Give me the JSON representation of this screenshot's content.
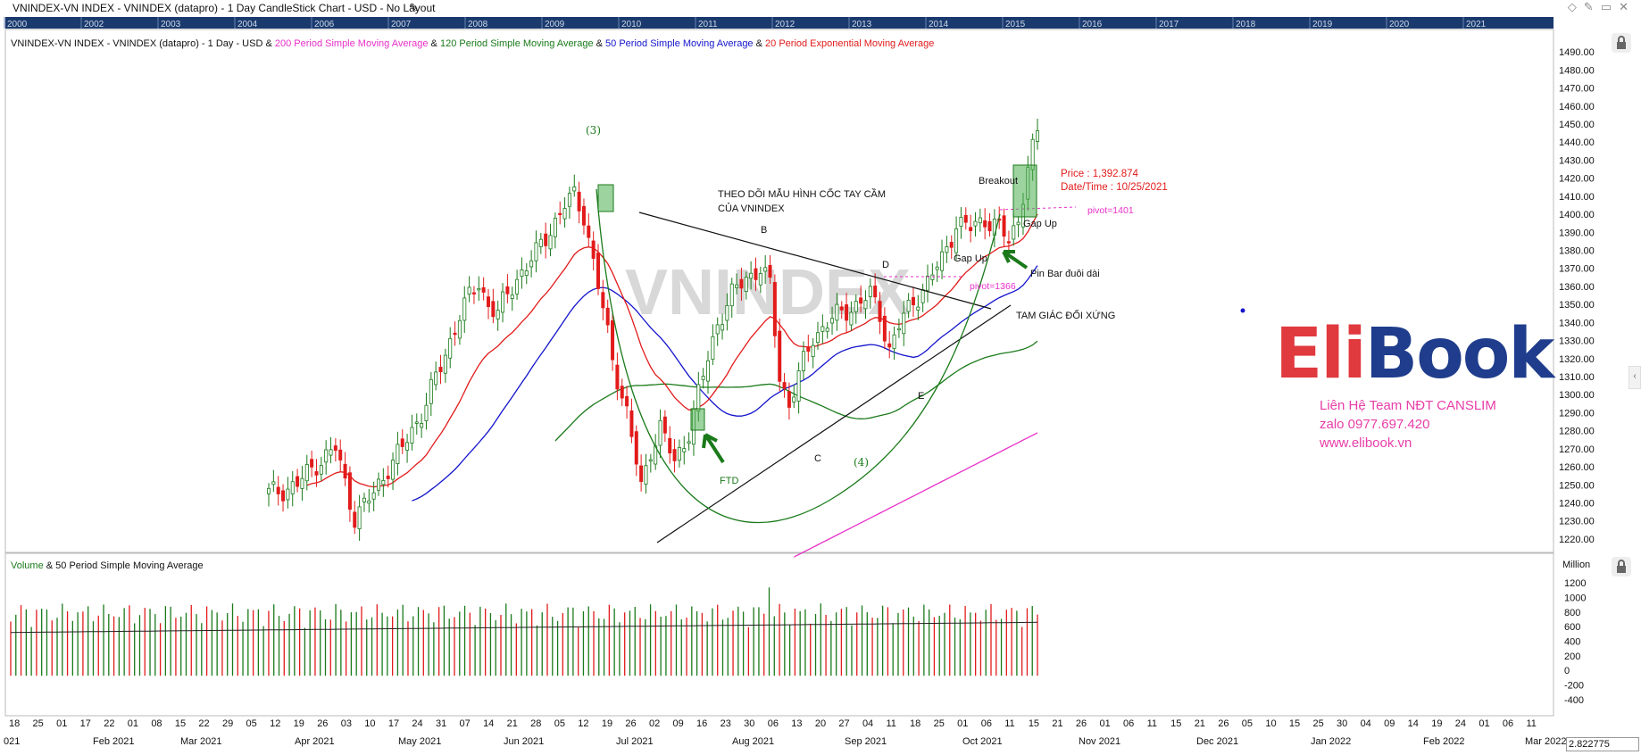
{
  "window_title": "VNINDEX-VN INDEX - VNINDEX (datapro) - 1 Day CandleStick Chart - USD - No Layout",
  "overview_years": [
    "2000",
    "2002",
    "2003",
    "2004",
    "2006",
    "2007",
    "2008",
    "2009",
    "2010",
    "2011",
    "2012",
    "2013",
    "2014",
    "2015",
    "2016",
    "2017",
    "2018",
    "2019",
    "2020",
    "2021"
  ],
  "legend": {
    "main": "VNINDEX-VN INDEX - VNINDEX (datapro) - 1 Day - USD",
    "amp": "&",
    "sma200": "200 Period Simple Moving Average",
    "sma120": "120 Period Simple Moving Average",
    "sma50": "50 Period Simple Moving Average",
    "ema20": "20 Period Exponential Moving Average",
    "volume": "Volume",
    "volume_rest": "& 50 Period Simple Moving Average"
  },
  "colors": {
    "up": "#1a7a1a",
    "down": "#e21b1b",
    "sma200": "#e830c8",
    "sma120": "#1a7a1a",
    "sma50": "#1414cc",
    "ema20": "#e21b1b",
    "overview": "#1a3a6e"
  },
  "annotations": {
    "wave3": "(3)",
    "wave4": "(4)",
    "title1": "THEO DÕI MẪU HÌNH CỐC TAY CẦM",
    "title2": "CỦA VNINDEX",
    "B": "B",
    "C": "C",
    "D": "D",
    "E": "E",
    "ftd": "FTD",
    "gapup1": "Gap Up",
    "gapup2": "Gap Up",
    "breakout": "Breakout",
    "pinbar": "Pin Bar đuôi dài",
    "triangle": "TAM GIÁC ĐỐI XỨNG",
    "pivot1366": "pivot=1366",
    "pivot1401": "pivot=1401",
    "price": "Price : 1,392.874",
    "datetime": "Date/Time : 10/25/2021",
    "watermark": "VNINDEX"
  },
  "logo": {
    "eli": "Eli",
    "book": "Book"
  },
  "contact": [
    "Liên Hệ Team NĐT CANSLIM",
    "zalo 0977.697.420",
    "www.elibook.vn"
  ],
  "volume_unit": "Million",
  "zoom_value": "2.822775",
  "chart_data": {
    "type": "candlestick",
    "price_axis": {
      "ticks": [
        1490,
        1480,
        1470,
        1460,
        1450,
        1440,
        1430,
        1420,
        1410,
        1400,
        1390,
        1380,
        1370,
        1360,
        1350,
        1340,
        1330,
        1320,
        1310,
        1300,
        1290,
        1280,
        1270,
        1260,
        1250,
        1240,
        1230,
        1220
      ],
      "min": 1215,
      "max": 1497
    },
    "volume_axis": {
      "ticks": [
        1200,
        1000,
        800,
        600,
        400,
        200,
        0,
        -200,
        -400
      ],
      "min": -500,
      "max": 1300
    },
    "x_axis_days": [
      "18",
      "25",
      "01",
      "17",
      "22",
      "01",
      "08",
      "15",
      "22",
      "29",
      "05",
      "12",
      "19",
      "26",
      "03",
      "10",
      "17",
      "24",
      "31",
      "07",
      "14",
      "21",
      "28",
      "05",
      "12",
      "19",
      "26",
      "02",
      "09",
      "16",
      "23",
      "30",
      "06",
      "13",
      "20",
      "27",
      "04",
      "11",
      "18",
      "25",
      "01",
      "06",
      "11",
      "15",
      "21",
      "26",
      "01",
      "06",
      "11",
      "15",
      "21",
      "26",
      "05",
      "10",
      "15",
      "25",
      "30",
      "04",
      "09",
      "14",
      "19",
      "24",
      "01",
      "06",
      "11"
    ],
    "x_axis_months": [
      "021",
      "Feb 2021",
      "Mar 2021",
      "Apr 2021",
      "May 2021",
      "Jun 2021",
      "Jul 2021",
      "Aug 2021",
      "Sep 2021",
      "Oct 2021",
      "Nov 2021",
      "Dec 2021",
      "Jan 2022",
      "Feb 2022",
      "Mar 2022"
    ],
    "close_anchors": [
      [
        0,
        1245
      ],
      [
        6,
        1250
      ],
      [
        10,
        1262
      ],
      [
        14,
        1270
      ],
      [
        18,
        1232
      ],
      [
        22,
        1245
      ],
      [
        25,
        1260
      ],
      [
        28,
        1270
      ],
      [
        32,
        1290
      ],
      [
        36,
        1315
      ],
      [
        40,
        1345
      ],
      [
        44,
        1362
      ],
      [
        46,
        1350
      ],
      [
        48,
        1345
      ],
      [
        52,
        1365
      ],
      [
        56,
        1378
      ],
      [
        59,
        1392
      ],
      [
        62,
        1405
      ],
      [
        64,
        1410
      ],
      [
        66,
        1400
      ],
      [
        69,
        1360
      ],
      [
        72,
        1320
      ],
      [
        75,
        1290
      ],
      [
        78,
        1248
      ],
      [
        80,
        1270
      ],
      [
        82,
        1282
      ],
      [
        85,
        1262
      ],
      [
        88,
        1280
      ],
      [
        91,
        1310
      ],
      [
        94,
        1340
      ],
      [
        97,
        1355
      ],
      [
        100,
        1365
      ],
      [
        103,
        1370
      ],
      [
        105,
        1360
      ],
      [
        107,
        1310
      ],
      [
        109,
        1295
      ],
      [
        111,
        1310
      ],
      [
        114,
        1332
      ],
      [
        117,
        1340
      ],
      [
        120,
        1345
      ],
      [
        123,
        1350
      ],
      [
        126,
        1355
      ],
      [
        128,
        1345
      ],
      [
        130,
        1325
      ],
      [
        132,
        1338
      ],
      [
        135,
        1352
      ],
      [
        138,
        1362
      ],
      [
        141,
        1375
      ],
      [
        144,
        1395
      ],
      [
        147,
        1392
      ],
      [
        150,
        1398
      ],
      [
        153,
        1392
      ],
      [
        155,
        1385
      ],
      [
        157,
        1398
      ],
      [
        159,
        1425
      ],
      [
        161,
        1445
      ]
    ]
  }
}
